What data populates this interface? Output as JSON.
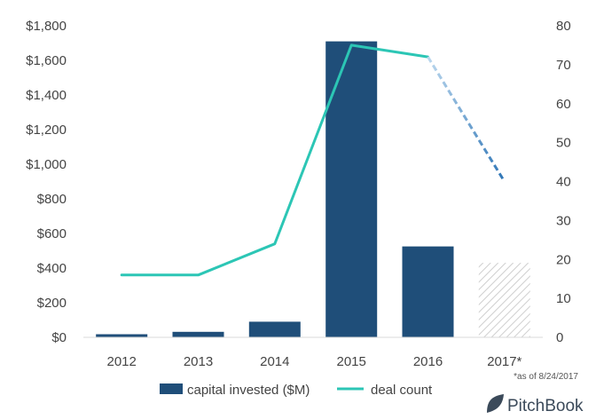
{
  "chart_data": {
    "type": "bar",
    "categories": [
      "2012",
      "2013",
      "2014",
      "2015",
      "2016",
      "2017*"
    ],
    "series": [
      {
        "name": "capital invested ($M)",
        "kind": "bar",
        "axis": "left",
        "values": [
          18,
          32,
          90,
          1710,
          525,
          430
        ],
        "color": "#1f4e79",
        "partial_color": "#d0d0d0"
      },
      {
        "name": "deal count",
        "kind": "line",
        "axis": "right",
        "values": [
          16,
          16,
          24,
          75,
          72,
          40
        ],
        "color": "#2cc6b5",
        "projection_color": "#5b9bd5"
      }
    ],
    "left_axis": {
      "min": 0,
      "max": 1800,
      "step": 200,
      "tick_labels": [
        "$0",
        "$200",
        "$400",
        "$600",
        "$800",
        "$1,000",
        "$1,200",
        "$1,400",
        "$1,600",
        "$1,800"
      ]
    },
    "right_axis": {
      "min": 0,
      "max": 80,
      "step": 10,
      "tick_labels": [
        "0",
        "10",
        "20",
        "30",
        "40",
        "50",
        "60",
        "70",
        "80"
      ]
    },
    "legend_position": "bottom",
    "grid": false,
    "annotation": "*as of 8/24/2017"
  },
  "brand": {
    "name": "PitchBook"
  }
}
